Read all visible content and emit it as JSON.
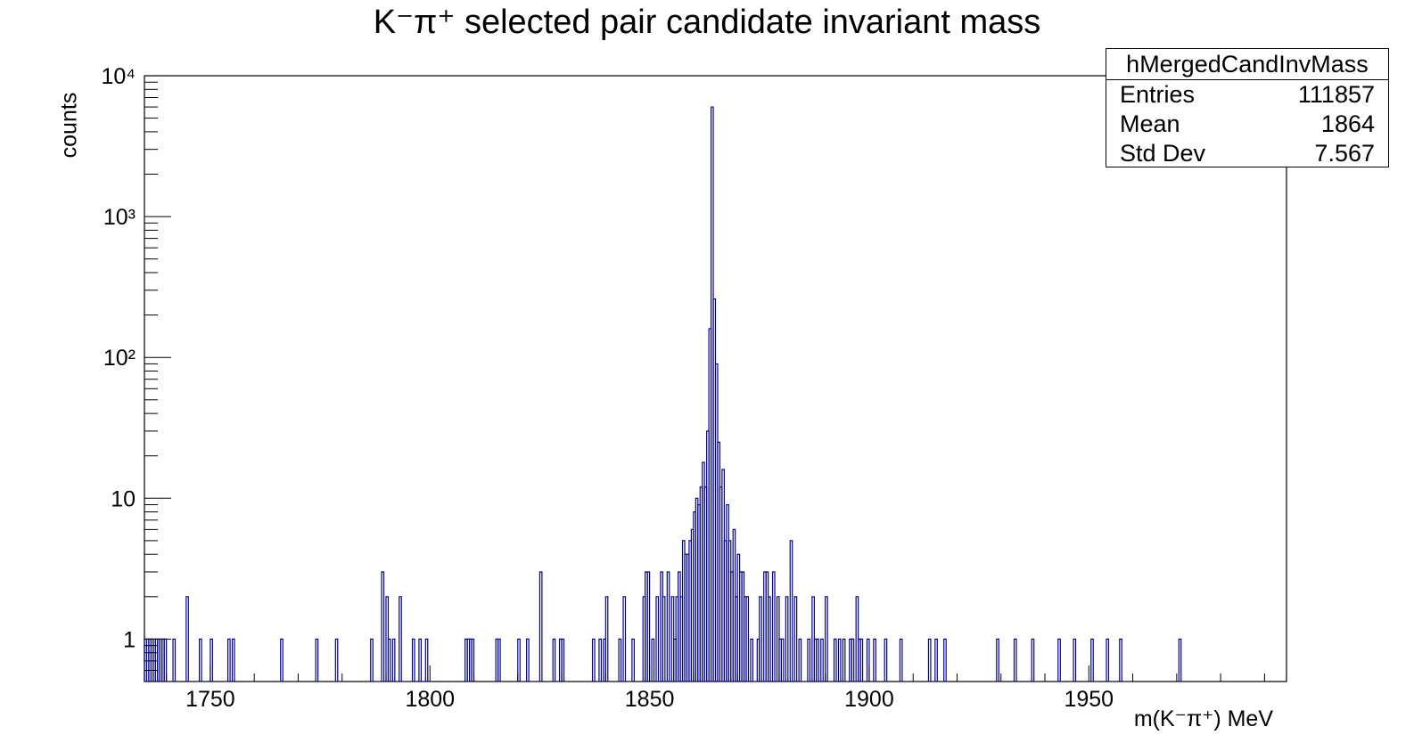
{
  "chart_data": {
    "type": "histogram",
    "title": "K⁻π⁺ selected pair candidate invariant mass",
    "xlabel": "m(K⁻π⁺) MeV",
    "ylabel": "counts",
    "xlim": [
      1735,
      1995
    ],
    "ylim": [
      0.5,
      10000
    ],
    "yscale": "log",
    "line_color": "#000099",
    "x_ticks": [
      1750,
      1800,
      1850,
      1900,
      1950
    ],
    "y_ticks": [
      "1",
      "10",
      "10²",
      "10³",
      "10⁴"
    ],
    "y_tick_values": [
      1,
      10,
      100,
      1000,
      10000
    ],
    "bin_width": 0.5,
    "bins": [
      [
        1735.0,
        1
      ],
      [
        1735.5,
        1
      ],
      [
        1736.0,
        1
      ],
      [
        1736.5,
        1
      ],
      [
        1737.0,
        1
      ],
      [
        1737.5,
        1
      ],
      [
        1738.0,
        1
      ],
      [
        1738.5,
        1
      ],
      [
        1739.0,
        1
      ],
      [
        1739.5,
        1
      ],
      [
        1741.5,
        1
      ],
      [
        1744.5,
        2
      ],
      [
        1747.5,
        1
      ],
      [
        1750.0,
        1
      ],
      [
        1754.0,
        1
      ],
      [
        1755.0,
        1
      ],
      [
        1766.0,
        1
      ],
      [
        1774.0,
        1
      ],
      [
        1778.5,
        1
      ],
      [
        1786.5,
        1
      ],
      [
        1789.0,
        3
      ],
      [
        1790.0,
        2
      ],
      [
        1790.5,
        1
      ],
      [
        1791.5,
        1
      ],
      [
        1793.0,
        2
      ],
      [
        1796.0,
        1
      ],
      [
        1797.5,
        1
      ],
      [
        1799.0,
        1
      ],
      [
        1808.0,
        1
      ],
      [
        1808.5,
        1
      ],
      [
        1809.0,
        1
      ],
      [
        1809.5,
        1
      ],
      [
        1815.0,
        1
      ],
      [
        1815.5,
        1
      ],
      [
        1820.0,
        1
      ],
      [
        1822.0,
        1
      ],
      [
        1825.0,
        3
      ],
      [
        1828.0,
        1
      ],
      [
        1829.5,
        1
      ],
      [
        1830.0,
        1
      ],
      [
        1837.0,
        1
      ],
      [
        1838.5,
        1
      ],
      [
        1839.5,
        1
      ],
      [
        1840.0,
        2
      ],
      [
        1843.0,
        1
      ],
      [
        1844.0,
        2
      ],
      [
        1846.0,
        1
      ],
      [
        1848.5,
        2
      ],
      [
        1849.0,
        3
      ],
      [
        1849.5,
        3
      ],
      [
        1850.5,
        1
      ],
      [
        1851.5,
        2
      ],
      [
        1852.5,
        3
      ],
      [
        1853.0,
        2
      ],
      [
        1854.0,
        3
      ],
      [
        1855.0,
        2
      ],
      [
        1855.5,
        1
      ],
      [
        1856.0,
        2
      ],
      [
        1856.5,
        3
      ],
      [
        1857.0,
        2
      ],
      [
        1857.5,
        5
      ],
      [
        1858.0,
        4
      ],
      [
        1858.5,
        4
      ],
      [
        1859.0,
        5
      ],
      [
        1859.5,
        6
      ],
      [
        1860.0,
        8
      ],
      [
        1860.5,
        10
      ],
      [
        1861.0,
        9
      ],
      [
        1861.5,
        12
      ],
      [
        1862.0,
        18
      ],
      [
        1862.5,
        12
      ],
      [
        1863.0,
        30
      ],
      [
        1863.5,
        160
      ],
      [
        1864.0,
        6000
      ],
      [
        1864.5,
        260
      ],
      [
        1865.0,
        90
      ],
      [
        1865.5,
        25
      ],
      [
        1866.0,
        12
      ],
      [
        1866.5,
        16
      ],
      [
        1867.0,
        5
      ],
      [
        1867.5,
        9
      ],
      [
        1868.0,
        5
      ],
      [
        1868.5,
        3
      ],
      [
        1869.0,
        6
      ],
      [
        1869.5,
        2
      ],
      [
        1870.0,
        4
      ],
      [
        1870.5,
        3
      ],
      [
        1871.0,
        3
      ],
      [
        1871.5,
        2
      ],
      [
        1872.0,
        2
      ],
      [
        1873.0,
        1
      ],
      [
        1874.5,
        1
      ],
      [
        1875.0,
        2
      ],
      [
        1876.0,
        3
      ],
      [
        1876.5,
        3
      ],
      [
        1877.0,
        2
      ],
      [
        1878.0,
        3
      ],
      [
        1879.0,
        2
      ],
      [
        1879.5,
        1
      ],
      [
        1880.0,
        1
      ],
      [
        1881.0,
        2
      ],
      [
        1882.0,
        5
      ],
      [
        1883.0,
        2
      ],
      [
        1884.0,
        1
      ],
      [
        1886.0,
        1
      ],
      [
        1887.0,
        2
      ],
      [
        1887.5,
        1
      ],
      [
        1888.0,
        1
      ],
      [
        1889.0,
        1
      ],
      [
        1890.0,
        2
      ],
      [
        1892.0,
        1
      ],
      [
        1893.0,
        1
      ],
      [
        1894.0,
        1
      ],
      [
        1895.5,
        1
      ],
      [
        1896.0,
        1
      ],
      [
        1897.0,
        2
      ],
      [
        1897.5,
        1
      ],
      [
        1898.0,
        1
      ],
      [
        1899.5,
        1
      ],
      [
        1901.0,
        1
      ],
      [
        1903.5,
        1
      ],
      [
        1907.0,
        1
      ],
      [
        1913.5,
        1
      ],
      [
        1915.0,
        1
      ],
      [
        1917.0,
        1
      ],
      [
        1929.0,
        1
      ],
      [
        1933.0,
        1
      ],
      [
        1937.0,
        1
      ],
      [
        1943.0,
        1
      ],
      [
        1946.5,
        1
      ],
      [
        1950.5,
        1
      ],
      [
        1954.0,
        1
      ],
      [
        1957.0,
        1
      ],
      [
        1970.5,
        1
      ]
    ]
  },
  "stats_box": {
    "name": "hMergedCandInvMass",
    "entries_label": "Entries",
    "entries_value": "111857",
    "mean_label": "Mean",
    "mean_value": "1864",
    "stddev_label": "Std Dev",
    "stddev_value": "7.567"
  }
}
